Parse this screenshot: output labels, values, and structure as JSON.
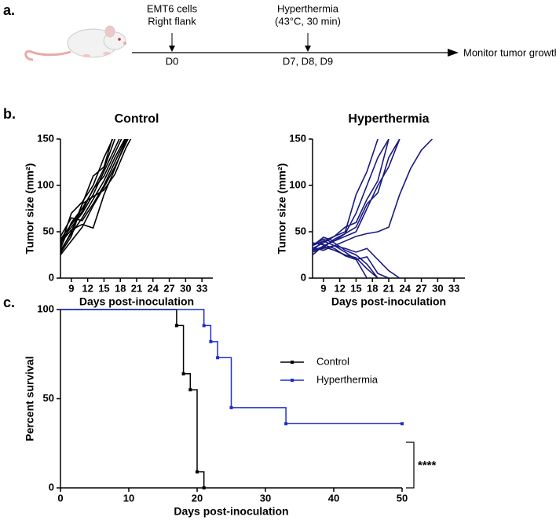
{
  "panel_labels": [
    "a.",
    "b.",
    "c."
  ],
  "timeline": {
    "event1": [
      "EMT6 cells",
      "Right flank"
    ],
    "day0": "D0",
    "event2": [
      "Hyperthermia",
      "(43°C, 30 min)"
    ],
    "days2": "D7, D8, D9",
    "end": "Monitor tumor growth"
  },
  "chart_data": [
    {
      "type": "line",
      "title": "Control",
      "x_label": "Days post-inoculation",
      "y_label": "Tumor size (mm²)",
      "x": [
        7,
        9,
        11,
        13,
        15,
        17,
        19,
        21,
        23,
        25,
        27,
        29,
        31,
        33
      ],
      "xlim": [
        7,
        35
      ],
      "xticks": [
        9,
        12,
        15,
        18,
        21,
        24,
        27,
        30,
        33
      ],
      "ylim": [
        0,
        150
      ],
      "yticks": [
        0,
        50,
        100,
        150
      ],
      "series": [
        {
          "color": "#000000",
          "values": [
            28,
            50,
            80,
            110,
            120,
            160,
            null,
            null,
            null,
            null,
            null,
            null,
            null,
            null
          ]
        },
        {
          "color": "#000000",
          "values": [
            32,
            60,
            75,
            95,
            118,
            150,
            null,
            null,
            null,
            null,
            null,
            null,
            null,
            null
          ]
        },
        {
          "color": "#000000",
          "values": [
            35,
            70,
            82,
            100,
            130,
            155,
            null,
            null,
            null,
            null,
            null,
            null,
            null,
            null
          ]
        },
        {
          "color": "#000000",
          "values": [
            40,
            55,
            70,
            90,
            115,
            140,
            165,
            null,
            null,
            null,
            null,
            null,
            null,
            null
          ]
        },
        {
          "color": "#000000",
          "values": [
            45,
            65,
            62,
            80,
            100,
            125,
            150,
            null,
            null,
            null,
            null,
            null,
            null,
            null
          ]
        },
        {
          "color": "#000000",
          "values": [
            25,
            40,
            55,
            78,
            98,
            120,
            145,
            170,
            null,
            null,
            null,
            null,
            null,
            null
          ]
        },
        {
          "color": "#000000",
          "values": [
            30,
            48,
            65,
            85,
            105,
            130,
            152,
            null,
            null,
            null,
            null,
            null,
            null,
            null
          ]
        },
        {
          "color": "#000000",
          "values": [
            38,
            52,
            58,
            54,
            90,
            118,
            148,
            170,
            null,
            null,
            null,
            null,
            null,
            null
          ]
        },
        {
          "color": "#000000",
          "values": [
            42,
            58,
            72,
            96,
            110,
            135,
            160,
            null,
            null,
            null,
            null,
            null,
            null,
            null
          ]
        },
        {
          "color": "#000000",
          "values": [
            27,
            45,
            80,
            88,
            95,
            112,
            140,
            162,
            null,
            null,
            null,
            null,
            null,
            null
          ]
        }
      ]
    },
    {
      "type": "line",
      "title": "Hyperthermia",
      "x_label": "Days post-inoculation",
      "y_label": "Tumor size (mm²)",
      "x": [
        7,
        9,
        11,
        13,
        15,
        17,
        19,
        21,
        23,
        25,
        27,
        29,
        31,
        33
      ],
      "xlim": [
        7,
        35
      ],
      "xticks": [
        9,
        12,
        15,
        18,
        21,
        24,
        27,
        30,
        33
      ],
      "ylim": [
        0,
        150
      ],
      "yticks": [
        0,
        50,
        100,
        150
      ],
      "series": [
        {
          "color": "#1a1a80",
          "values": [
            30,
            40,
            45,
            50,
            90,
            115,
            150,
            null,
            null,
            null,
            null,
            null,
            null,
            null
          ]
        },
        {
          "color": "#1a1a80",
          "values": [
            25,
            35,
            40,
            48,
            70,
            100,
            130,
            150,
            null,
            null,
            null,
            null,
            null,
            null
          ]
        },
        {
          "color": "#1a1a80",
          "values": [
            32,
            38,
            45,
            55,
            60,
            85,
            105,
            150,
            null,
            null,
            null,
            null,
            null,
            null
          ]
        },
        {
          "color": "#1a1a80",
          "values": [
            28,
            33,
            42,
            48,
            55,
            80,
            92,
            130,
            150,
            null,
            null,
            null,
            null,
            null
          ]
        },
        {
          "color": "#1a1a80",
          "values": [
            35,
            44,
            40,
            45,
            50,
            75,
            100,
            120,
            150,
            null,
            null,
            null,
            null,
            null
          ]
        },
        {
          "color": "#1a1a80",
          "values": [
            30,
            32,
            35,
            40,
            45,
            48,
            50,
            55,
            90,
            118,
            138,
            150,
            null,
            null
          ]
        },
        {
          "color": "#1a1a80",
          "values": [
            33,
            30,
            35,
            32,
            28,
            32,
            20,
            8,
            0,
            null,
            null,
            null,
            null,
            null
          ]
        },
        {
          "color": "#1a1a80",
          "values": [
            36,
            42,
            38,
            30,
            25,
            15,
            0,
            null,
            null,
            null,
            null,
            null,
            null,
            null
          ]
        },
        {
          "color": "#1a1a80",
          "values": [
            30,
            34,
            30,
            25,
            22,
            10,
            0,
            null,
            null,
            null,
            null,
            null,
            null,
            null
          ]
        },
        {
          "color": "#1a1a80",
          "values": [
            35,
            40,
            35,
            28,
            20,
            0,
            null,
            null,
            null,
            null,
            null,
            null,
            null,
            null
          ]
        },
        {
          "color": "#1a1a80",
          "values": [
            38,
            36,
            32,
            24,
            20,
            23,
            5,
            0,
            null,
            null,
            null,
            null,
            null,
            null
          ]
        }
      ]
    },
    {
      "type": "step",
      "x_label": "Days post-inoculation",
      "y_label": "Percent survival",
      "xlim": [
        0,
        50
      ],
      "xticks": [
        0,
        10,
        20,
        30,
        40,
        50
      ],
      "ylim": [
        0,
        100
      ],
      "yticks": [
        0,
        50,
        100
      ],
      "series": [
        {
          "name": "Control",
          "color": "#000000",
          "x": [
            0,
            17,
            18,
            19,
            20,
            21
          ],
          "values": [
            100,
            91,
            64,
            55,
            9,
            0
          ]
        },
        {
          "name": "Hyperthermia",
          "color": "#1f2ecc",
          "x": [
            0,
            21,
            22,
            23,
            25,
            33,
            50
          ],
          "values": [
            100,
            91,
            82,
            73,
            45,
            36,
            36
          ]
        }
      ],
      "annotation": "****"
    }
  ]
}
